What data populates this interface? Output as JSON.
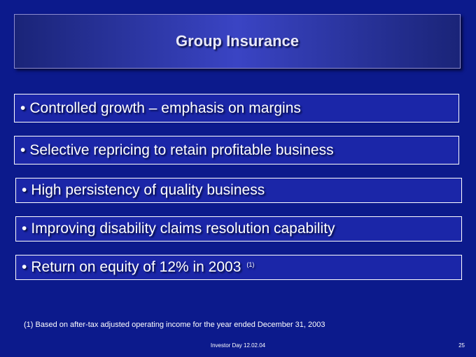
{
  "title": "Group Insurance",
  "bullets": [
    {
      "text": "Controlled growth – emphasis on margins"
    },
    {
      "text": "Selective repricing to retain profitable business"
    },
    {
      "text": "High persistency of quality business"
    },
    {
      "text": "Improving disability claims resolution capability"
    },
    {
      "text": "Return on equity of 12% in 2003",
      "note": "(1)"
    }
  ],
  "bullet_symbol": "•",
  "footnote": "(1) Based on after-tax adjusted operating income for the year ended December 31, 2003",
  "footer": "Investor Day 12.02.04",
  "page_number": "25"
}
